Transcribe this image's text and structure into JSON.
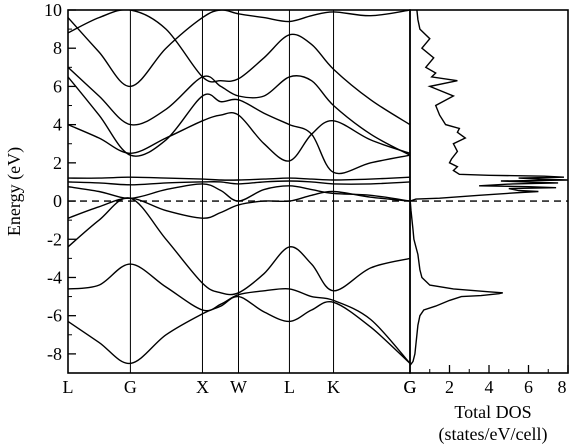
{
  "chart_data": [
    {
      "type": "line",
      "subtype": "band-structure",
      "title": "",
      "ylabel": "Energy (eV)",
      "xlabel": "",
      "ylim": [
        -9,
        10
      ],
      "y_ticks": [
        -8,
        -6,
        -4,
        -2,
        0,
        2,
        4,
        6,
        8,
        10
      ],
      "high_symmetry_points": [
        {
          "label": "L",
          "k": 0.0
        },
        {
          "label": "G",
          "k": 0.866
        },
        {
          "label": "X",
          "k": 1.866
        },
        {
          "label": "W",
          "k": 2.366
        },
        {
          "label": "L",
          "k": 3.073
        },
        {
          "label": "K",
          "k": 3.685
        },
        {
          "label": "G",
          "k": 4.746
        }
      ],
      "fermi_level": 0,
      "series": [
        {
          "x": [
            0,
            0.43,
            0.866,
            1.36,
            1.866,
            2.12,
            2.366,
            2.72,
            3.073,
            3.38,
            3.685,
            4.2,
            4.746
          ],
          "values": [
            -6.3,
            -7.4,
            -8.5,
            -7.0,
            -5.9,
            -5.5,
            -5.0,
            -5.8,
            -6.3,
            -5.7,
            -5.3,
            -6.6,
            -8.5
          ]
        },
        {
          "x": [
            0,
            0.43,
            0.866,
            1.36,
            1.866,
            2.12,
            2.366,
            2.72,
            3.073,
            3.38,
            3.685,
            4.2,
            4.746
          ],
          "values": [
            -4.6,
            -4.4,
            -3.3,
            -4.5,
            -5.7,
            -5.4,
            -4.9,
            -4.7,
            -4.6,
            -5.0,
            -5.2,
            -6.2,
            -8.5
          ]
        },
        {
          "x": [
            0,
            0.43,
            0.866,
            1.36,
            1.866,
            2.12,
            2.366,
            2.72,
            3.073,
            3.38,
            3.685,
            4.2,
            4.746
          ],
          "values": [
            -2.4,
            -1.0,
            0.15,
            -2.0,
            -4.3,
            -4.8,
            -4.8,
            -3.8,
            -2.4,
            -3.3,
            -4.7,
            -3.5,
            -3.0
          ]
        },
        {
          "x": [
            0,
            0.43,
            0.866,
            1.36,
            1.866,
            2.12,
            2.366,
            2.72,
            3.073,
            3.38,
            3.685,
            4.2,
            4.746
          ],
          "values": [
            -0.9,
            -0.3,
            0.15,
            -0.5,
            -0.9,
            -0.6,
            -0.2,
            0.0,
            0.0,
            0.3,
            0.5,
            0.2,
            0.0
          ]
        },
        {
          "x": [
            0,
            0.43,
            0.866,
            1.36,
            1.866,
            2.12,
            2.366,
            2.72,
            3.073,
            3.38,
            3.685,
            4.2,
            4.746
          ],
          "values": [
            0.75,
            0.5,
            0.15,
            0.6,
            0.9,
            0.55,
            0.0,
            0.6,
            0.8,
            0.6,
            0.4,
            0.3,
            0.0
          ]
        },
        {
          "x": [
            0,
            0.43,
            0.866,
            1.36,
            1.866,
            2.12,
            2.366,
            2.72,
            3.073,
            3.38,
            3.685,
            4.2,
            4.746
          ],
          "values": [
            1.0,
            0.95,
            0.85,
            0.95,
            1.0,
            1.0,
            0.9,
            1.0,
            1.05,
            1.0,
            0.9,
            0.9,
            1.0
          ]
        },
        {
          "x": [
            0,
            0.43,
            0.866,
            1.36,
            1.866,
            2.12,
            2.366,
            2.72,
            3.073,
            3.38,
            3.685,
            4.2,
            4.746
          ],
          "values": [
            1.2,
            1.2,
            1.25,
            1.2,
            1.15,
            1.1,
            1.1,
            1.15,
            1.2,
            1.15,
            1.1,
            1.15,
            1.25
          ]
        },
        {
          "x": [
            0,
            0.43,
            0.866,
            1.36,
            1.866,
            2.12,
            2.366,
            2.72,
            3.073,
            3.38,
            3.685,
            4.2,
            4.746
          ],
          "values": [
            4.0,
            3.3,
            2.5,
            3.3,
            4.2,
            4.5,
            4.5,
            3.0,
            2.1,
            3.5,
            4.2,
            3.2,
            2.5
          ]
        },
        {
          "x": [
            0,
            0.43,
            0.866,
            1.36,
            1.866,
            2.12,
            2.366,
            2.72,
            3.073,
            3.38,
            3.685,
            4.2,
            4.746
          ],
          "values": [
            6.5,
            4.5,
            2.4,
            3.2,
            5.5,
            5.2,
            5.3,
            4.6,
            4.0,
            3.5,
            1.5,
            2.0,
            2.4
          ]
        },
        {
          "x": [
            0,
            0.43,
            0.866,
            1.36,
            1.866,
            2.12,
            2.366,
            2.72,
            3.073,
            3.38,
            3.685,
            4.2,
            4.746
          ],
          "values": [
            7.0,
            5.5,
            4.0,
            4.8,
            6.5,
            6.0,
            5.5,
            5.5,
            6.5,
            6.3,
            5.0,
            3.5,
            2.4
          ]
        },
        {
          "x": [
            0,
            0.43,
            0.866,
            1.36,
            1.866,
            2.12,
            2.366,
            2.72,
            3.073,
            3.38,
            3.685,
            4.2,
            4.746
          ],
          "values": [
            8.8,
            9.6,
            10.0,
            9.0,
            6.5,
            6.3,
            6.4,
            7.5,
            8.7,
            8.2,
            6.9,
            5.3,
            4.0
          ]
        },
        {
          "x": [
            0,
            0.43,
            0.866,
            1.36,
            1.866,
            2.12,
            2.366,
            2.72,
            3.073,
            3.38,
            3.685,
            4.2,
            4.746
          ],
          "values": [
            9.6,
            7.8,
            6.0,
            8.0,
            9.6,
            10.0,
            9.8,
            9.6,
            9.4,
            9.7,
            9.9,
            9.7,
            10.0
          ]
        }
      ]
    },
    {
      "type": "line",
      "subtype": "density-of-states",
      "title": "",
      "xlabel": "Total DOS",
      "xlabel_units": "(states/eV/cell)",
      "ylabel": "",
      "xlim": [
        0,
        8
      ],
      "ylim": [
        -9,
        10
      ],
      "x_ticks": [
        2,
        4,
        6,
        8
      ],
      "x_tick_labels": [
        "2",
        "4",
        "6",
        "8"
      ],
      "origin_label": "G",
      "fermi_level": 0,
      "series": [
        {
          "energy": [
            -8.6,
            -8.4,
            -8.0,
            -7.5,
            -7.0,
            -6.5,
            -6.0,
            -5.7,
            -5.5,
            -5.2,
            -5.0,
            -4.95,
            -4.85,
            -4.8,
            -4.75,
            -4.6,
            -4.4,
            -4.2,
            -4.0,
            -3.6,
            -3.2,
            -2.8,
            -2.4,
            -2.0,
            -1.5,
            -1.0,
            -0.5,
            -0.1,
            0.0,
            0.1,
            0.15,
            0.3,
            0.45,
            0.5,
            0.55,
            0.65,
            0.7,
            0.75,
            0.8,
            0.9,
            0.95,
            1.0,
            1.05,
            1.1,
            1.15,
            1.2,
            1.25,
            1.3,
            1.35,
            1.4,
            1.6,
            1.8,
            2.0,
            2.2,
            2.6,
            3.0,
            3.3,
            3.6,
            3.8,
            4.0,
            4.5,
            5.0,
            5.5,
            6.0,
            6.3,
            6.5,
            6.7,
            7.0,
            7.5,
            8.0,
            8.5,
            9.0,
            9.5,
            10.0
          ],
          "dos": [
            0.0,
            0.15,
            0.25,
            0.3,
            0.35,
            0.4,
            0.5,
            0.7,
            1.3,
            2.0,
            2.6,
            3.6,
            4.5,
            4.7,
            4.0,
            2.2,
            1.0,
            0.8,
            0.6,
            0.5,
            0.45,
            0.4,
            0.3,
            0.2,
            0.15,
            0.1,
            0.05,
            0.02,
            0.0,
            0.3,
            1.5,
            3.5,
            5.6,
            6.5,
            5.5,
            5.0,
            7.4,
            6.0,
            3.5,
            5.2,
            7.5,
            5.8,
            4.6,
            8.0,
            6.5,
            5.5,
            7.8,
            6.8,
            4.0,
            2.5,
            2.2,
            2.4,
            2.0,
            2.1,
            2.4,
            2.2,
            2.8,
            2.4,
            2.5,
            1.8,
            1.5,
            1.3,
            2.2,
            1.0,
            2.4,
            1.1,
            1.3,
            0.8,
            1.2,
            0.6,
            1.0,
            0.5,
            0.4,
            0.35
          ]
        }
      ]
    }
  ]
}
